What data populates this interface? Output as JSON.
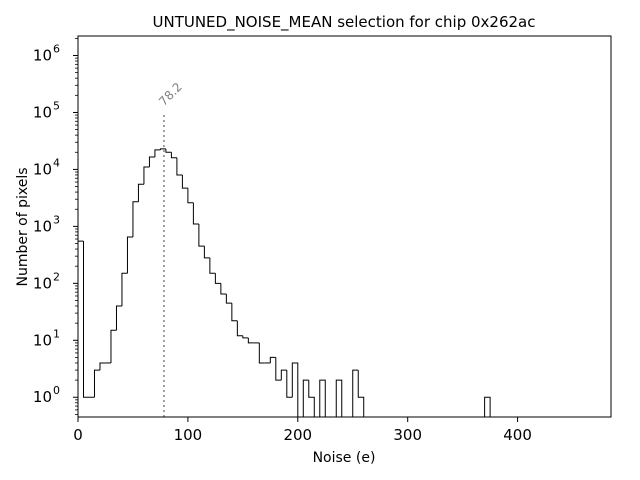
{
  "chart_data": {
    "type": "histogram",
    "title": "UNTUNED_NOISE_MEAN selection for chip 0x262ac",
    "xlabel": "Noise (e)",
    "ylabel": "Number of pixels",
    "xlim": [
      0,
      485
    ],
    "ylim": [
      0.45,
      2200000
    ],
    "y_scale": "log",
    "x_ticks": [
      0,
      100,
      200,
      300,
      400
    ],
    "y_ticks": [
      {
        "value": 1,
        "base": "10",
        "exp": "0"
      },
      {
        "value": 10,
        "base": "10",
        "exp": "1"
      },
      {
        "value": 100,
        "base": "10",
        "exp": "2"
      },
      {
        "value": 1000,
        "base": "10",
        "exp": "3"
      },
      {
        "value": 10000,
        "base": "10",
        "exp": "4"
      },
      {
        "value": 100000,
        "base": "10",
        "exp": "5"
      },
      {
        "value": 1000000,
        "base": "10",
        "exp": "6"
      }
    ],
    "bin_width": 5,
    "bins": [
      [
        0,
        550
      ],
      [
        5,
        1
      ],
      [
        10,
        1
      ],
      [
        15,
        3
      ],
      [
        20,
        4
      ],
      [
        25,
        4
      ],
      [
        30,
        15
      ],
      [
        35,
        40
      ],
      [
        40,
        150
      ],
      [
        45,
        650
      ],
      [
        50,
        2700
      ],
      [
        55,
        5500
      ],
      [
        60,
        11000
      ],
      [
        65,
        16500
      ],
      [
        70,
        22000
      ],
      [
        75,
        23000
      ],
      [
        80,
        20000
      ],
      [
        85,
        16000
      ],
      [
        90,
        8000
      ],
      [
        95,
        4700
      ],
      [
        100,
        2600
      ],
      [
        105,
        1100
      ],
      [
        110,
        450
      ],
      [
        115,
        280
      ],
      [
        120,
        150
      ],
      [
        125,
        100
      ],
      [
        130,
        65
      ],
      [
        135,
        45
      ],
      [
        140,
        22
      ],
      [
        145,
        12
      ],
      [
        150,
        11
      ],
      [
        155,
        9
      ],
      [
        160,
        9
      ],
      [
        165,
        4
      ],
      [
        170,
        4
      ],
      [
        175,
        5
      ],
      [
        180,
        2
      ],
      [
        185,
        3
      ],
      [
        190,
        1
      ],
      [
        195,
        4
      ],
      [
        200,
        0
      ],
      [
        205,
        2
      ],
      [
        210,
        1
      ],
      [
        215,
        0
      ],
      [
        220,
        2
      ],
      [
        225,
        0
      ],
      [
        230,
        0
      ],
      [
        235,
        2
      ],
      [
        240,
        0
      ],
      [
        245,
        0
      ],
      [
        250,
        3
      ],
      [
        255,
        1
      ],
      [
        260,
        0
      ],
      [
        370,
        1
      ]
    ],
    "vline": {
      "x": 78.2,
      "label": "78.2",
      "top": 100000,
      "color": "#808080"
    }
  }
}
